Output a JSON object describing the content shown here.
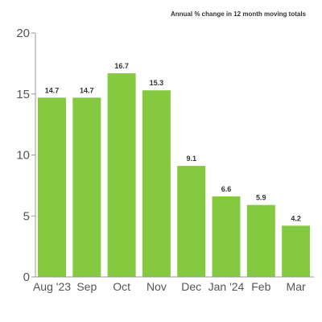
{
  "chart_data": {
    "type": "bar",
    "subtitle": "Annual % change in 12 month moving totals",
    "categories": [
      "Aug '23",
      "Sep",
      "Oct",
      "Nov",
      "Dec",
      "Jan '24",
      "Feb",
      "Mar"
    ],
    "values": [
      14.7,
      14.7,
      16.7,
      15.3,
      9.1,
      6.6,
      5.9,
      4.2
    ],
    "data_labels": [
      "14.7",
      "14.7",
      "16.7",
      "15.3",
      "9.1",
      "6.6",
      "5.9",
      "4.2"
    ],
    "ylim": [
      0,
      20
    ],
    "yticks": [
      "0",
      "5",
      "10",
      "15",
      "20"
    ],
    "grid": false,
    "bar_color": "#84c93f"
  }
}
